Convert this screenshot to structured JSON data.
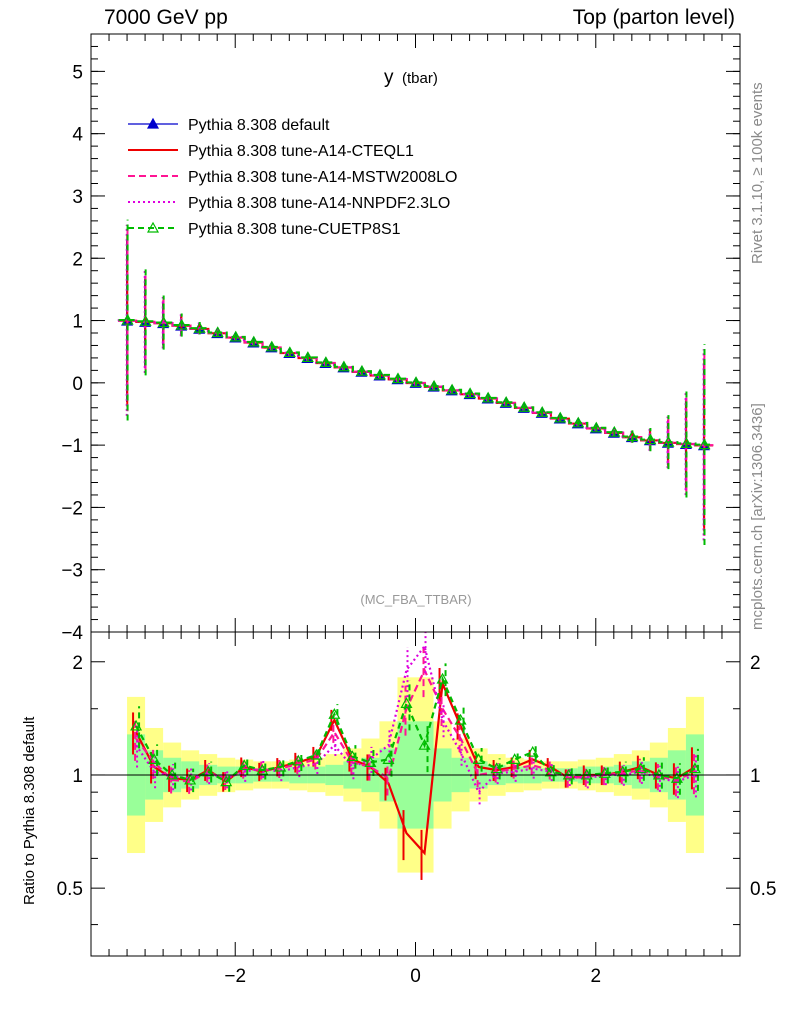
{
  "header": {
    "left": "7000 GeV pp",
    "right": "Top (parton level)"
  },
  "side_labels": {
    "rivet": "Rivet 3.1.10, ≥ 100k events",
    "mcplots": "mcplots.cern.ch [arXiv:1306.3436]"
  },
  "chart_data": [
    {
      "type": "line",
      "title": "y",
      "title_suffix": "(tbar)",
      "watermark": "(MC_FBA_TTBAR)",
      "xlabel": "",
      "ylabel": "",
      "xlim": [
        -3.6,
        3.6
      ],
      "ylim": [
        -4,
        5.6
      ],
      "yticks": [
        -4,
        -3,
        -2,
        -1,
        0,
        1,
        2,
        3,
        4,
        5
      ],
      "grid": false,
      "legend_position": "top-left",
      "colors": [
        "#0000cc",
        "#ee0000",
        "#ff1493",
        "#dd00dd",
        "#00bb00"
      ],
      "series": [
        {
          "name": "Pythia 8.308 default",
          "style": "solid-triangle"
        },
        {
          "name": "Pythia 8.308 tune-A14-CTEQL1",
          "style": "solid"
        },
        {
          "name": "Pythia 8.308 tune-A14-MSTW2008LO",
          "style": "dashed"
        },
        {
          "name": "Pythia 8.308 tune-A14-NNPDF2.3LO",
          "style": "dotted"
        },
        {
          "name": "Pythia 8.308 tune-CUETP8S1",
          "style": "dashed-open-triangle"
        }
      ],
      "x": [
        -3.2,
        -3.0,
        -2.8,
        -2.6,
        -2.4,
        -2.2,
        -2.0,
        -1.8,
        -1.6,
        -1.4,
        -1.2,
        -1.0,
        -0.8,
        -0.6,
        -0.4,
        -0.2,
        0.0,
        0.2,
        0.4,
        0.6,
        0.8,
        1.0,
        1.2,
        1.4,
        1.6,
        1.8,
        2.0,
        2.2,
        2.4,
        2.6,
        2.8,
        3.0,
        3.2
      ],
      "y": [
        1.0,
        0.98,
        0.96,
        0.92,
        0.87,
        0.8,
        0.73,
        0.65,
        0.57,
        0.48,
        0.4,
        0.32,
        0.25,
        0.18,
        0.12,
        0.06,
        0.0,
        -0.06,
        -0.12,
        -0.18,
        -0.25,
        -0.32,
        -0.4,
        -0.48,
        -0.57,
        -0.65,
        -0.73,
        -0.8,
        -0.87,
        -0.92,
        -0.96,
        -0.98,
        -1.0
      ],
      "yerr": [
        1.3,
        0.7,
        0.35,
        0.15,
        0.08,
        0.05,
        0.04,
        0.04,
        0.04,
        0.04,
        0.04,
        0.04,
        0.04,
        0.04,
        0.04,
        0.04,
        0.04,
        0.04,
        0.04,
        0.04,
        0.04,
        0.04,
        0.04,
        0.04,
        0.04,
        0.04,
        0.04,
        0.05,
        0.08,
        0.15,
        0.35,
        0.7,
        1.3
      ]
    },
    {
      "type": "line",
      "ylabel": "Ratio to Pythia 8.308 default",
      "xlim": [
        -3.6,
        3.6
      ],
      "ylim": [
        0.33,
        2.4
      ],
      "log_y": true,
      "yticks": [
        0.5,
        1,
        2
      ],
      "xticks": [
        -2,
        0,
        2
      ],
      "x": [
        -3.1,
        -2.9,
        -2.7,
        -2.5,
        -2.3,
        -2.1,
        -1.9,
        -1.7,
        -1.5,
        -1.3,
        -1.1,
        -0.9,
        -0.7,
        -0.5,
        -0.3,
        -0.1,
        0.1,
        0.3,
        0.5,
        0.7,
        0.9,
        1.1,
        1.3,
        1.5,
        1.7,
        1.9,
        2.1,
        2.3,
        2.5,
        2.7,
        2.9,
        3.1
      ],
      "band_yellow": [
        0.62,
        0.75,
        0.82,
        0.86,
        0.88,
        0.9,
        0.91,
        0.92,
        0.92,
        0.91,
        0.9,
        0.88,
        0.85,
        0.8,
        0.72,
        0.55,
        0.55,
        0.72,
        0.8,
        0.85,
        0.88,
        0.9,
        0.91,
        0.92,
        0.92,
        0.91,
        0.9,
        0.88,
        0.86,
        0.82,
        0.75,
        0.62
      ],
      "band_green": [
        0.78,
        0.86,
        0.9,
        0.92,
        0.94,
        0.95,
        0.95,
        0.96,
        0.96,
        0.95,
        0.95,
        0.94,
        0.92,
        0.9,
        0.85,
        0.72,
        0.72,
        0.85,
        0.9,
        0.92,
        0.94,
        0.95,
        0.95,
        0.96,
        0.96,
        0.95,
        0.95,
        0.94,
        0.92,
        0.9,
        0.86,
        0.78
      ],
      "ratio_series": [
        {
          "values": [
            1.3,
            1.05,
            0.98,
            0.97,
            1.03,
            0.96,
            1.05,
            1.02,
            1.05,
            1.08,
            1.12,
            1.4,
            1.1,
            1.05,
            0.95,
            0.7,
            0.62,
            1.75,
            1.35,
            1.05,
            1.03,
            1.05,
            1.1,
            1.05,
            0.98,
            1.0,
            1.0,
            1.02,
            1.05,
            1.0,
            0.98,
            1.05
          ]
        },
        {
          "values": [
            1.25,
            1.08,
            0.97,
            0.96,
            1.02,
            0.97,
            1.04,
            1.03,
            1.04,
            1.07,
            1.1,
            1.3,
            1.08,
            1.05,
            0.98,
            1.5,
            1.9,
            1.5,
            1.25,
            1.0,
            1.02,
            1.04,
            1.06,
            1.03,
            0.98,
            0.99,
            1.0,
            1.01,
            1.03,
            0.99,
            0.97,
            1.02
          ]
        },
        {
          "values": [
            1.2,
            1.02,
            0.99,
            0.98,
            1.01,
            0.98,
            1.02,
            1.04,
            1.02,
            1.05,
            1.07,
            1.2,
            1.05,
            1.1,
            1.2,
            1.9,
            2.2,
            1.4,
            1.15,
            0.9,
            1.01,
            1.02,
            1.04,
            1.02,
            0.99,
            0.98,
            1.0,
            1.0,
            1.02,
            0.98,
            0.96,
            1.0
          ]
        },
        {
          "values": [
            1.35,
            1.1,
            1.0,
            0.97,
            1.02,
            0.96,
            1.06,
            1.03,
            1.05,
            1.09,
            1.13,
            1.45,
            1.12,
            1.08,
            1.1,
            1.55,
            1.2,
            1.8,
            1.4,
            1.1,
            1.04,
            1.1,
            1.15,
            1.02,
            1.0,
            1.0,
            1.01,
            1.02,
            1.04,
            1.0,
            0.98,
            1.04
          ]
        }
      ]
    }
  ]
}
